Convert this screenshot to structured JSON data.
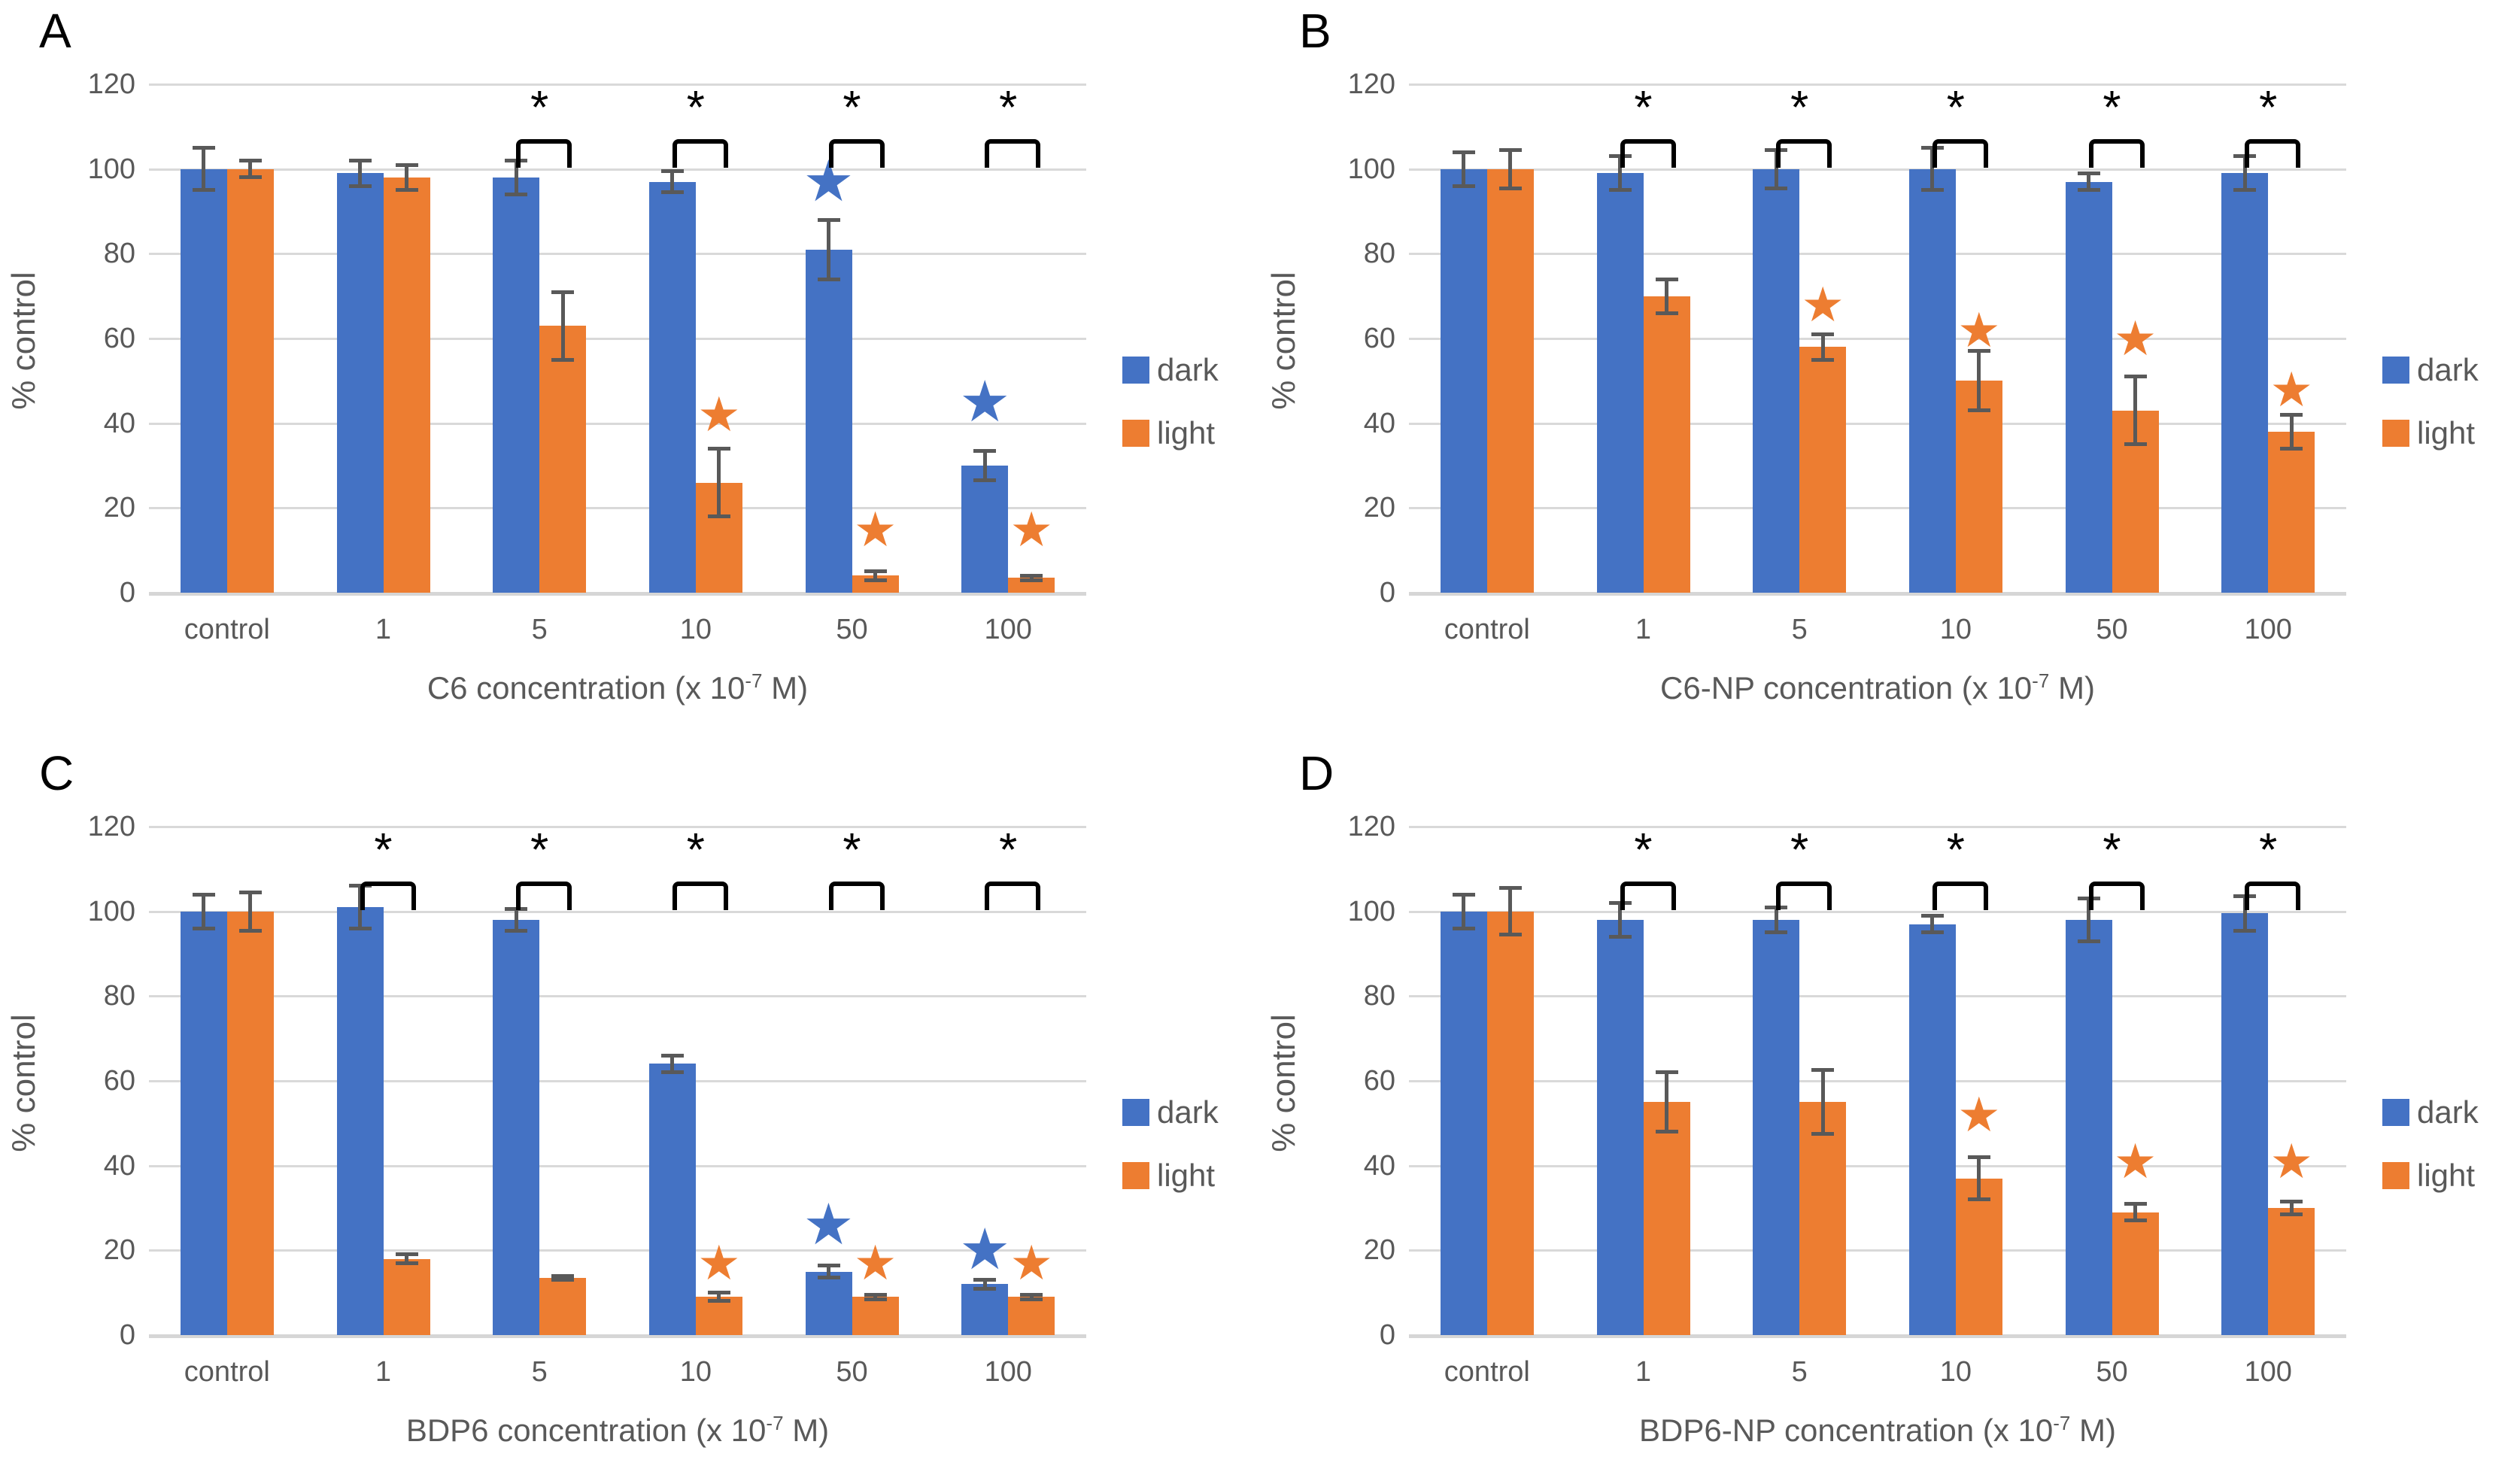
{
  "figure": {
    "ylabel": "% control",
    "legend": {
      "dark": "dark",
      "light": "light"
    },
    "colors": {
      "dark_series": "#4472C4",
      "light_series": "#ED7D31",
      "error_bars": "#595959",
      "gridlines": "#D9D9D9",
      "axis_text": "#595959",
      "bracket": "#000000",
      "star_dark": "#4472C4",
      "star_light": "#ED7D31"
    },
    "significance_symbol": "*"
  },
  "chart_data": [
    {
      "panel": "A",
      "type": "bar",
      "categories": [
        "control",
        "1",
        "5",
        "10",
        "50",
        "100"
      ],
      "ylim": [
        0,
        120
      ],
      "yticks": [
        0,
        20,
        40,
        60,
        80,
        100,
        120
      ],
      "xlabel": {
        "prefix": "C6 concentration (x 10",
        "sup": "-7",
        "suffix": " M)"
      },
      "series": [
        {
          "name": "dark",
          "values": [
            100,
            99,
            98,
            97,
            81,
            30
          ],
          "errors": [
            5,
            3,
            4,
            2.5,
            7,
            3.5
          ]
        },
        {
          "name": "light",
          "values": [
            100,
            98,
            63,
            26,
            4,
            3.5
          ],
          "errors": [
            2,
            3,
            8,
            8,
            1,
            0.5
          ]
        }
      ],
      "significance_brackets": [
        "5",
        "10",
        "50",
        "100"
      ],
      "stars": [
        {
          "series": "dark",
          "category": "50",
          "y": 97
        },
        {
          "series": "dark",
          "category": "100",
          "y": 45
        },
        {
          "series": "light",
          "category": "10",
          "y": 42
        },
        {
          "series": "light",
          "category": "50",
          "y": 15
        },
        {
          "series": "light",
          "category": "100",
          "y": 15
        }
      ]
    },
    {
      "panel": "B",
      "type": "bar",
      "categories": [
        "control",
        "1",
        "5",
        "10",
        "50",
        "100"
      ],
      "ylim": [
        0,
        120
      ],
      "yticks": [
        0,
        20,
        40,
        60,
        80,
        100,
        120
      ],
      "xlabel": {
        "prefix": "C6-NP concentration (x 10",
        "sup": "-7",
        "suffix": " M)"
      },
      "series": [
        {
          "name": "dark",
          "values": [
            100,
            99,
            100,
            100,
            97,
            99
          ],
          "errors": [
            4,
            4,
            4.5,
            5,
            2,
            4
          ]
        },
        {
          "name": "light",
          "values": [
            100,
            70,
            58,
            50,
            43,
            38
          ],
          "errors": [
            4.5,
            4,
            3,
            7,
            8,
            4
          ]
        }
      ],
      "significance_brackets": [
        "1",
        "5",
        "10",
        "50",
        "100"
      ],
      "stars": [
        {
          "series": "light",
          "category": "5",
          "y": 68
        },
        {
          "series": "light",
          "category": "10",
          "y": 62
        },
        {
          "series": "light",
          "category": "50",
          "y": 60
        },
        {
          "series": "light",
          "category": "100",
          "y": 48
        }
      ]
    },
    {
      "panel": "C",
      "type": "bar",
      "categories": [
        "control",
        "1",
        "5",
        "10",
        "50",
        "100"
      ],
      "ylim": [
        0,
        120
      ],
      "yticks": [
        0,
        20,
        40,
        60,
        80,
        100,
        120
      ],
      "xlabel": {
        "prefix": "BDP6 concentration (x 10",
        "sup": "-7",
        "suffix": " M)"
      },
      "series": [
        {
          "name": "dark",
          "values": [
            100,
            101,
            98,
            64,
            15,
            12
          ],
          "errors": [
            4,
            5,
            2.5,
            2,
            1.5,
            1
          ]
        },
        {
          "name": "light",
          "values": [
            100,
            18,
            13.5,
            9,
            9,
            9
          ],
          "errors": [
            4.5,
            1,
            0.5,
            1,
            0.5,
            0.5
          ]
        }
      ],
      "significance_brackets": [
        "1",
        "5",
        "10",
        "50",
        "100"
      ],
      "stars": [
        {
          "series": "dark",
          "category": "50",
          "y": 26
        },
        {
          "series": "dark",
          "category": "100",
          "y": 20
        },
        {
          "series": "light",
          "category": "10",
          "y": 17
        },
        {
          "series": "light",
          "category": "50",
          "y": 17
        },
        {
          "series": "light",
          "category": "100",
          "y": 17
        }
      ]
    },
    {
      "panel": "D",
      "type": "bar",
      "categories": [
        "control",
        "1",
        "5",
        "10",
        "50",
        "100"
      ],
      "ylim": [
        0,
        120
      ],
      "yticks": [
        0,
        20,
        40,
        60,
        80,
        100,
        120
      ],
      "xlabel": {
        "prefix": "BDP6-NP concentration (x 10",
        "sup": "-7",
        "suffix": " M)"
      },
      "series": [
        {
          "name": "dark",
          "values": [
            100,
            98,
            98,
            97,
            98,
            99.5
          ],
          "errors": [
            4,
            4,
            3,
            2,
            5,
            4
          ]
        },
        {
          "name": "light",
          "values": [
            100,
            55,
            55,
            37,
            29,
            30
          ],
          "errors": [
            5.5,
            7,
            7.5,
            5,
            2,
            1.5
          ]
        }
      ],
      "significance_brackets": [
        "1",
        "5",
        "10",
        "50",
        "100"
      ],
      "stars": [
        {
          "series": "light",
          "category": "10",
          "y": 52
        },
        {
          "series": "light",
          "category": "50",
          "y": 41
        },
        {
          "series": "light",
          "category": "100",
          "y": 41
        }
      ]
    }
  ]
}
